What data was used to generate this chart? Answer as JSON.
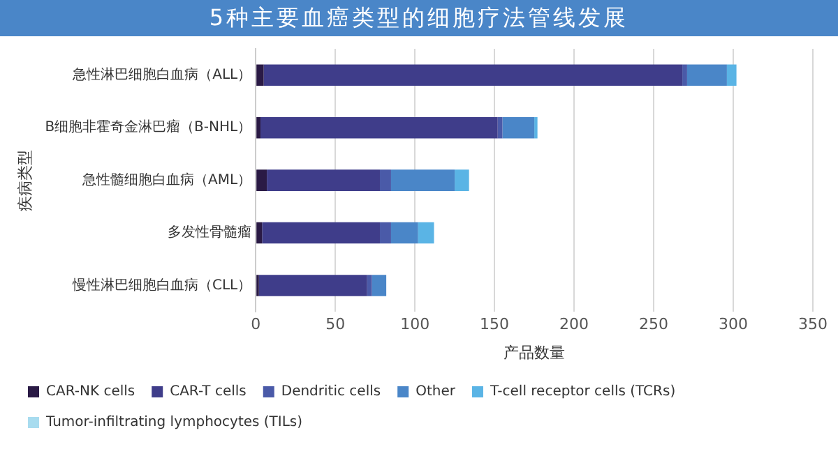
{
  "chart_data": {
    "type": "bar",
    "orientation": "horizontal",
    "stacked": true,
    "title": "5种主要血癌类型的细胞疗法管线发展",
    "xlabel": "产品数量",
    "ylabel": "疾病类型",
    "categories": [
      "急性淋巴细胞白血病（ALL）",
      "B细胞非霍奇金淋巴瘤（B-NHL）",
      "急性髓细胞白血病（AML）",
      "多发性骨髓瘤",
      "慢性淋巴细胞白血病（CLL）"
    ],
    "series": [
      {
        "name": "CAR-NK cells",
        "color": "#2a1a45",
        "values": [
          5,
          3,
          7,
          4,
          2
        ]
      },
      {
        "name": "CAR-T cells",
        "color": "#3f3d8a",
        "values": [
          263,
          149,
          71,
          74,
          68
        ]
      },
      {
        "name": "Dendritic cells",
        "color": "#4a5aa8",
        "values": [
          3,
          3,
          7,
          7,
          3
        ]
      },
      {
        "name": "Other",
        "color": "#4a86c8",
        "values": [
          25,
          20,
          40,
          17,
          9
        ]
      },
      {
        "name": "T-cell receptor cells (TCRs)",
        "color": "#5ab4e5",
        "values": [
          6,
          2,
          9,
          10,
          0
        ]
      },
      {
        "name": "Tumor-infiltrating lymphocytes (TILs)",
        "color": "#a8dcef",
        "values": [
          0,
          0,
          0,
          0,
          0
        ]
      }
    ],
    "xlim": [
      0,
      350
    ],
    "xticks": [
      0,
      50,
      100,
      150,
      200,
      250,
      300,
      350
    ],
    "grid": "x",
    "legend": "bottom"
  }
}
